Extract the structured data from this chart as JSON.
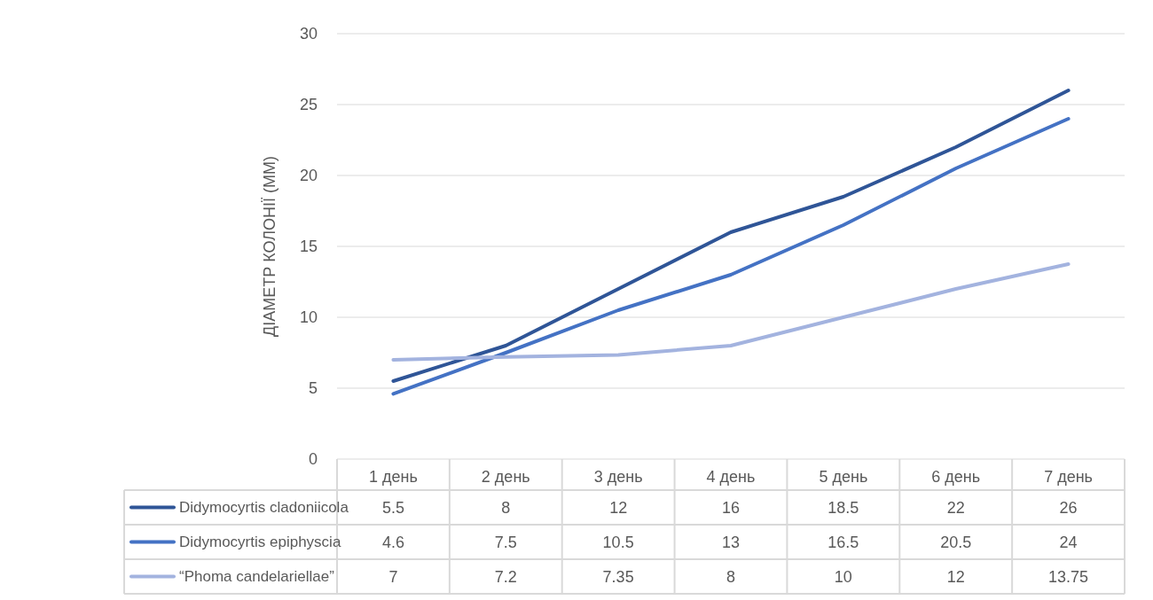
{
  "chart_data": {
    "type": "line",
    "ylabel": "ДІАМЕТР КОЛОНІЇ (ММ)",
    "categories": [
      "1 день",
      "2 день",
      "3 день",
      "4 день",
      "5 день",
      "6 день",
      "7 день"
    ],
    "series": [
      {
        "name": "Didymocyrtis cladoniicola",
        "color": "#2f5597",
        "values": [
          5.5,
          8,
          12,
          16,
          18.5,
          22,
          26
        ]
      },
      {
        "name": "Didymocyrtis epiphyscia",
        "color": "#4472c4",
        "values": [
          4.6,
          7.5,
          10.5,
          13,
          16.5,
          20.5,
          24
        ]
      },
      {
        "name": "“Phoma candelariellae”",
        "color": "#a3b3df",
        "values": [
          7,
          7.2,
          7.35,
          8,
          10,
          12,
          13.75
        ]
      }
    ],
    "ylim": [
      0,
      30
    ],
    "yticks": [
      0,
      5,
      10,
      15,
      20,
      25,
      30
    ],
    "grid": "y",
    "legend": "bottom",
    "data_labels": true,
    "marker": "none",
    "line_style": "solid"
  }
}
